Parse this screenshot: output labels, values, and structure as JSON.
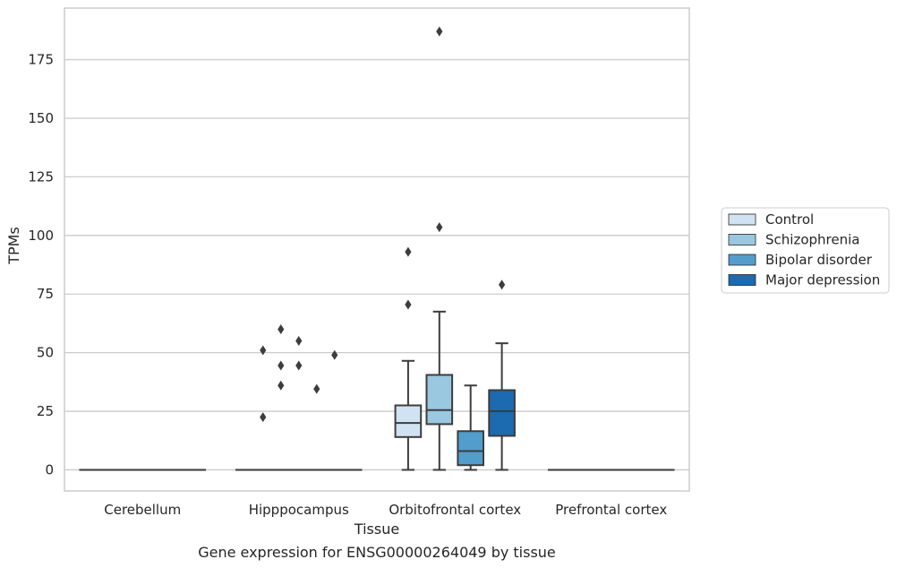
{
  "chart_data": {
    "type": "box",
    "title": "",
    "caption": "Gene expression for ENSG00000264049 by tissue",
    "xlabel": "Tissue",
    "ylabel": "TPMs",
    "ylim": [
      -9,
      197
    ],
    "yticks": [
      0,
      25,
      50,
      75,
      100,
      125,
      150,
      175
    ],
    "grid": "horizontal",
    "legend_position": "right",
    "categories": [
      "Cerebellum",
      "Hipppocampus",
      "Orbitofrontal cortex",
      "Prefrontal cortex"
    ],
    "series": [
      {
        "name": "Control",
        "color": "#d1e2f2"
      },
      {
        "name": "Schizophrenia",
        "color": "#9ac8e0"
      },
      {
        "name": "Bipolar disorder",
        "color": "#529dcc"
      },
      {
        "name": "Major depression",
        "color": "#1c6aaf"
      }
    ],
    "boxes": [
      {
        "category": "Cerebellum",
        "series": "all",
        "low": 0,
        "q1": 0,
        "median": 0,
        "q3": 0,
        "high": 0,
        "outliers": []
      },
      {
        "category": "Hipppocampus",
        "series": "all",
        "low": 0,
        "q1": 0,
        "median": 0,
        "q3": 0,
        "high": 0,
        "outliers": [
          22.5,
          34.5,
          36,
          44.5,
          44.5,
          49,
          51,
          55,
          60
        ]
      },
      {
        "category": "Orbitofrontal cortex",
        "series": "Control",
        "low": 0,
        "q1": 14,
        "median": 20,
        "q3": 27.5,
        "high": 46.5,
        "outliers": [
          70.5,
          93
        ]
      },
      {
        "category": "Orbitofrontal cortex",
        "series": "Schizophrenia",
        "low": 0,
        "q1": 19.5,
        "median": 25.5,
        "q3": 40.5,
        "high": 67.5,
        "outliers": [
          103.5,
          187
        ]
      },
      {
        "category": "Orbitofrontal cortex",
        "series": "Bipolar disorder",
        "low": 0,
        "q1": 2,
        "median": 8,
        "q3": 16.5,
        "high": 36,
        "outliers": []
      },
      {
        "category": "Orbitofrontal cortex",
        "series": "Major depression",
        "low": 0,
        "q1": 14.5,
        "median": 25,
        "q3": 34,
        "high": 54,
        "outliers": [
          79
        ]
      },
      {
        "category": "Prefrontal cortex",
        "series": "all",
        "low": 0,
        "q1": 0,
        "median": 0,
        "q3": 0,
        "high": 0,
        "outliers": []
      }
    ]
  }
}
